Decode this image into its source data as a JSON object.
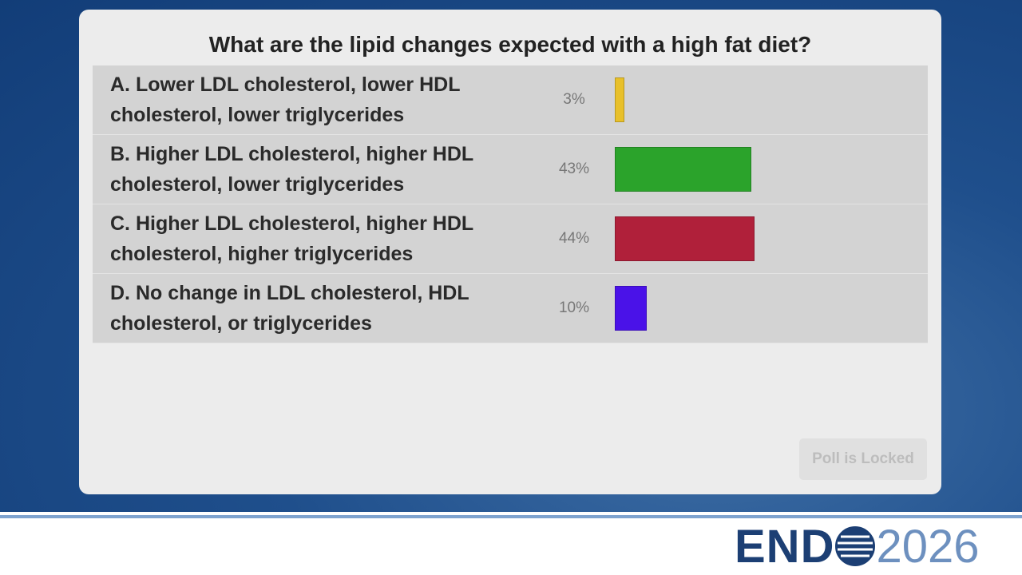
{
  "chart_data": {
    "type": "bar",
    "orientation": "horizontal",
    "title": "What are the lipid changes expected with a high fat diet?",
    "categories": [
      "A. Lower LDL cholesterol, lower HDL cholesterol, lower triglycerides",
      "B. Higher LDL cholesterol, higher HDL cholesterol, lower triglycerides",
      "C. Higher LDL cholesterol, higher HDL cholesterol, higher triglycerides",
      "D. No change in LDL cholesterol, HDL cholesterol, or triglycerides"
    ],
    "values": [
      3,
      43,
      44,
      10
    ],
    "value_labels": [
      "3%",
      "43%",
      "44%",
      "10%"
    ],
    "colors": [
      "#e8c02a",
      "#2ba32b",
      "#b0203a",
      "#4a12e8"
    ]
  },
  "button": "Poll is Locked",
  "logo": {
    "brand": "END",
    "year": "2026"
  }
}
